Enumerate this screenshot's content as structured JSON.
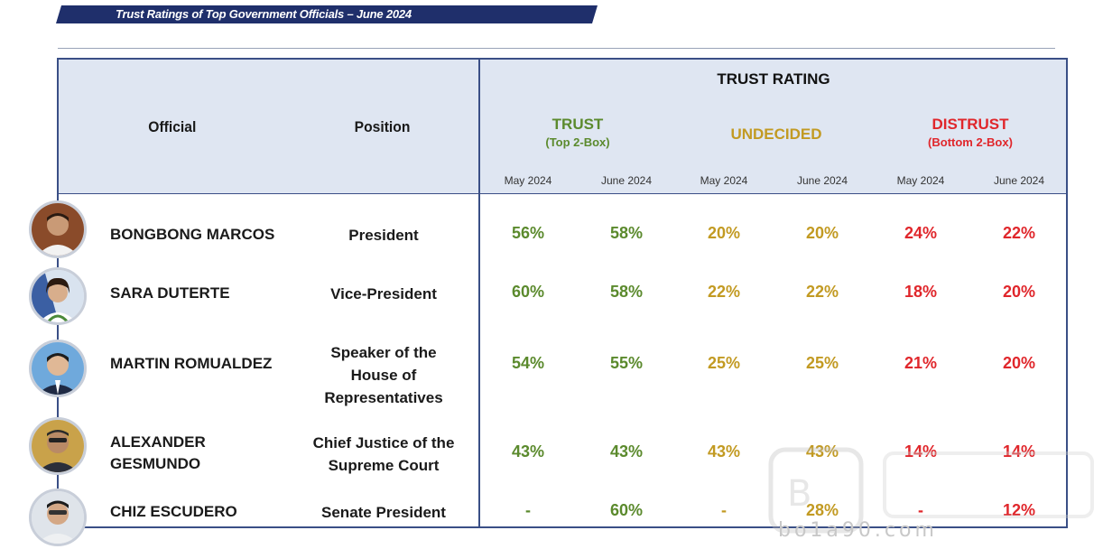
{
  "title": "Trust Ratings of Top Government Officials – June 2024",
  "headers": {
    "official": "Official",
    "position": "Position",
    "trust_rating": "TRUST RATING",
    "trust": "TRUST",
    "trust_sub": "(Top 2-Box)",
    "undecided": "UNDECIDED",
    "distrust": "DISTRUST",
    "distrust_sub": "(Bottom 2-Box)",
    "months": [
      "May 2024",
      "June 2024",
      "May 2024",
      "June 2024",
      "May 2024",
      "June 2024"
    ]
  },
  "colors": {
    "trust": "#5b8a2d",
    "undecided": "#c29a22",
    "distrust": "#e0262b",
    "header_bg": "#dfe6f2",
    "border": "#3a4f86"
  },
  "rows": [
    {
      "name": "BONGBONG MARCOS",
      "position": "President",
      "values": [
        "56%",
        "58%",
        "20%",
        "20%",
        "24%",
        "22%"
      ]
    },
    {
      "name": "SARA DUTERTE",
      "position": "Vice-President",
      "values": [
        "60%",
        "58%",
        "22%",
        "22%",
        "18%",
        "20%"
      ]
    },
    {
      "name": "MARTIN ROMUALDEZ",
      "position": "Speaker of the House of Representatives",
      "position_lines": [
        "Speaker of the",
        "House of",
        "Representatives"
      ],
      "values": [
        "54%",
        "55%",
        "25%",
        "25%",
        "21%",
        "20%"
      ]
    },
    {
      "name": "ALEXANDER GESMUNDO",
      "name_lines": [
        "ALEXANDER",
        "GESMUNDO"
      ],
      "position": "Chief Justice of the Supreme Court",
      "position_lines": [
        "Chief Justice of the",
        "Supreme Court"
      ],
      "values": [
        "43%",
        "43%",
        "43%",
        "43%",
        "14%",
        "14%"
      ]
    },
    {
      "name": "CHIZ ESCUDERO",
      "position": "Senate President",
      "values": [
        "-",
        "60%",
        "-",
        "28%",
        "-",
        "12%"
      ]
    }
  ],
  "watermark": "bo1a90.com"
}
